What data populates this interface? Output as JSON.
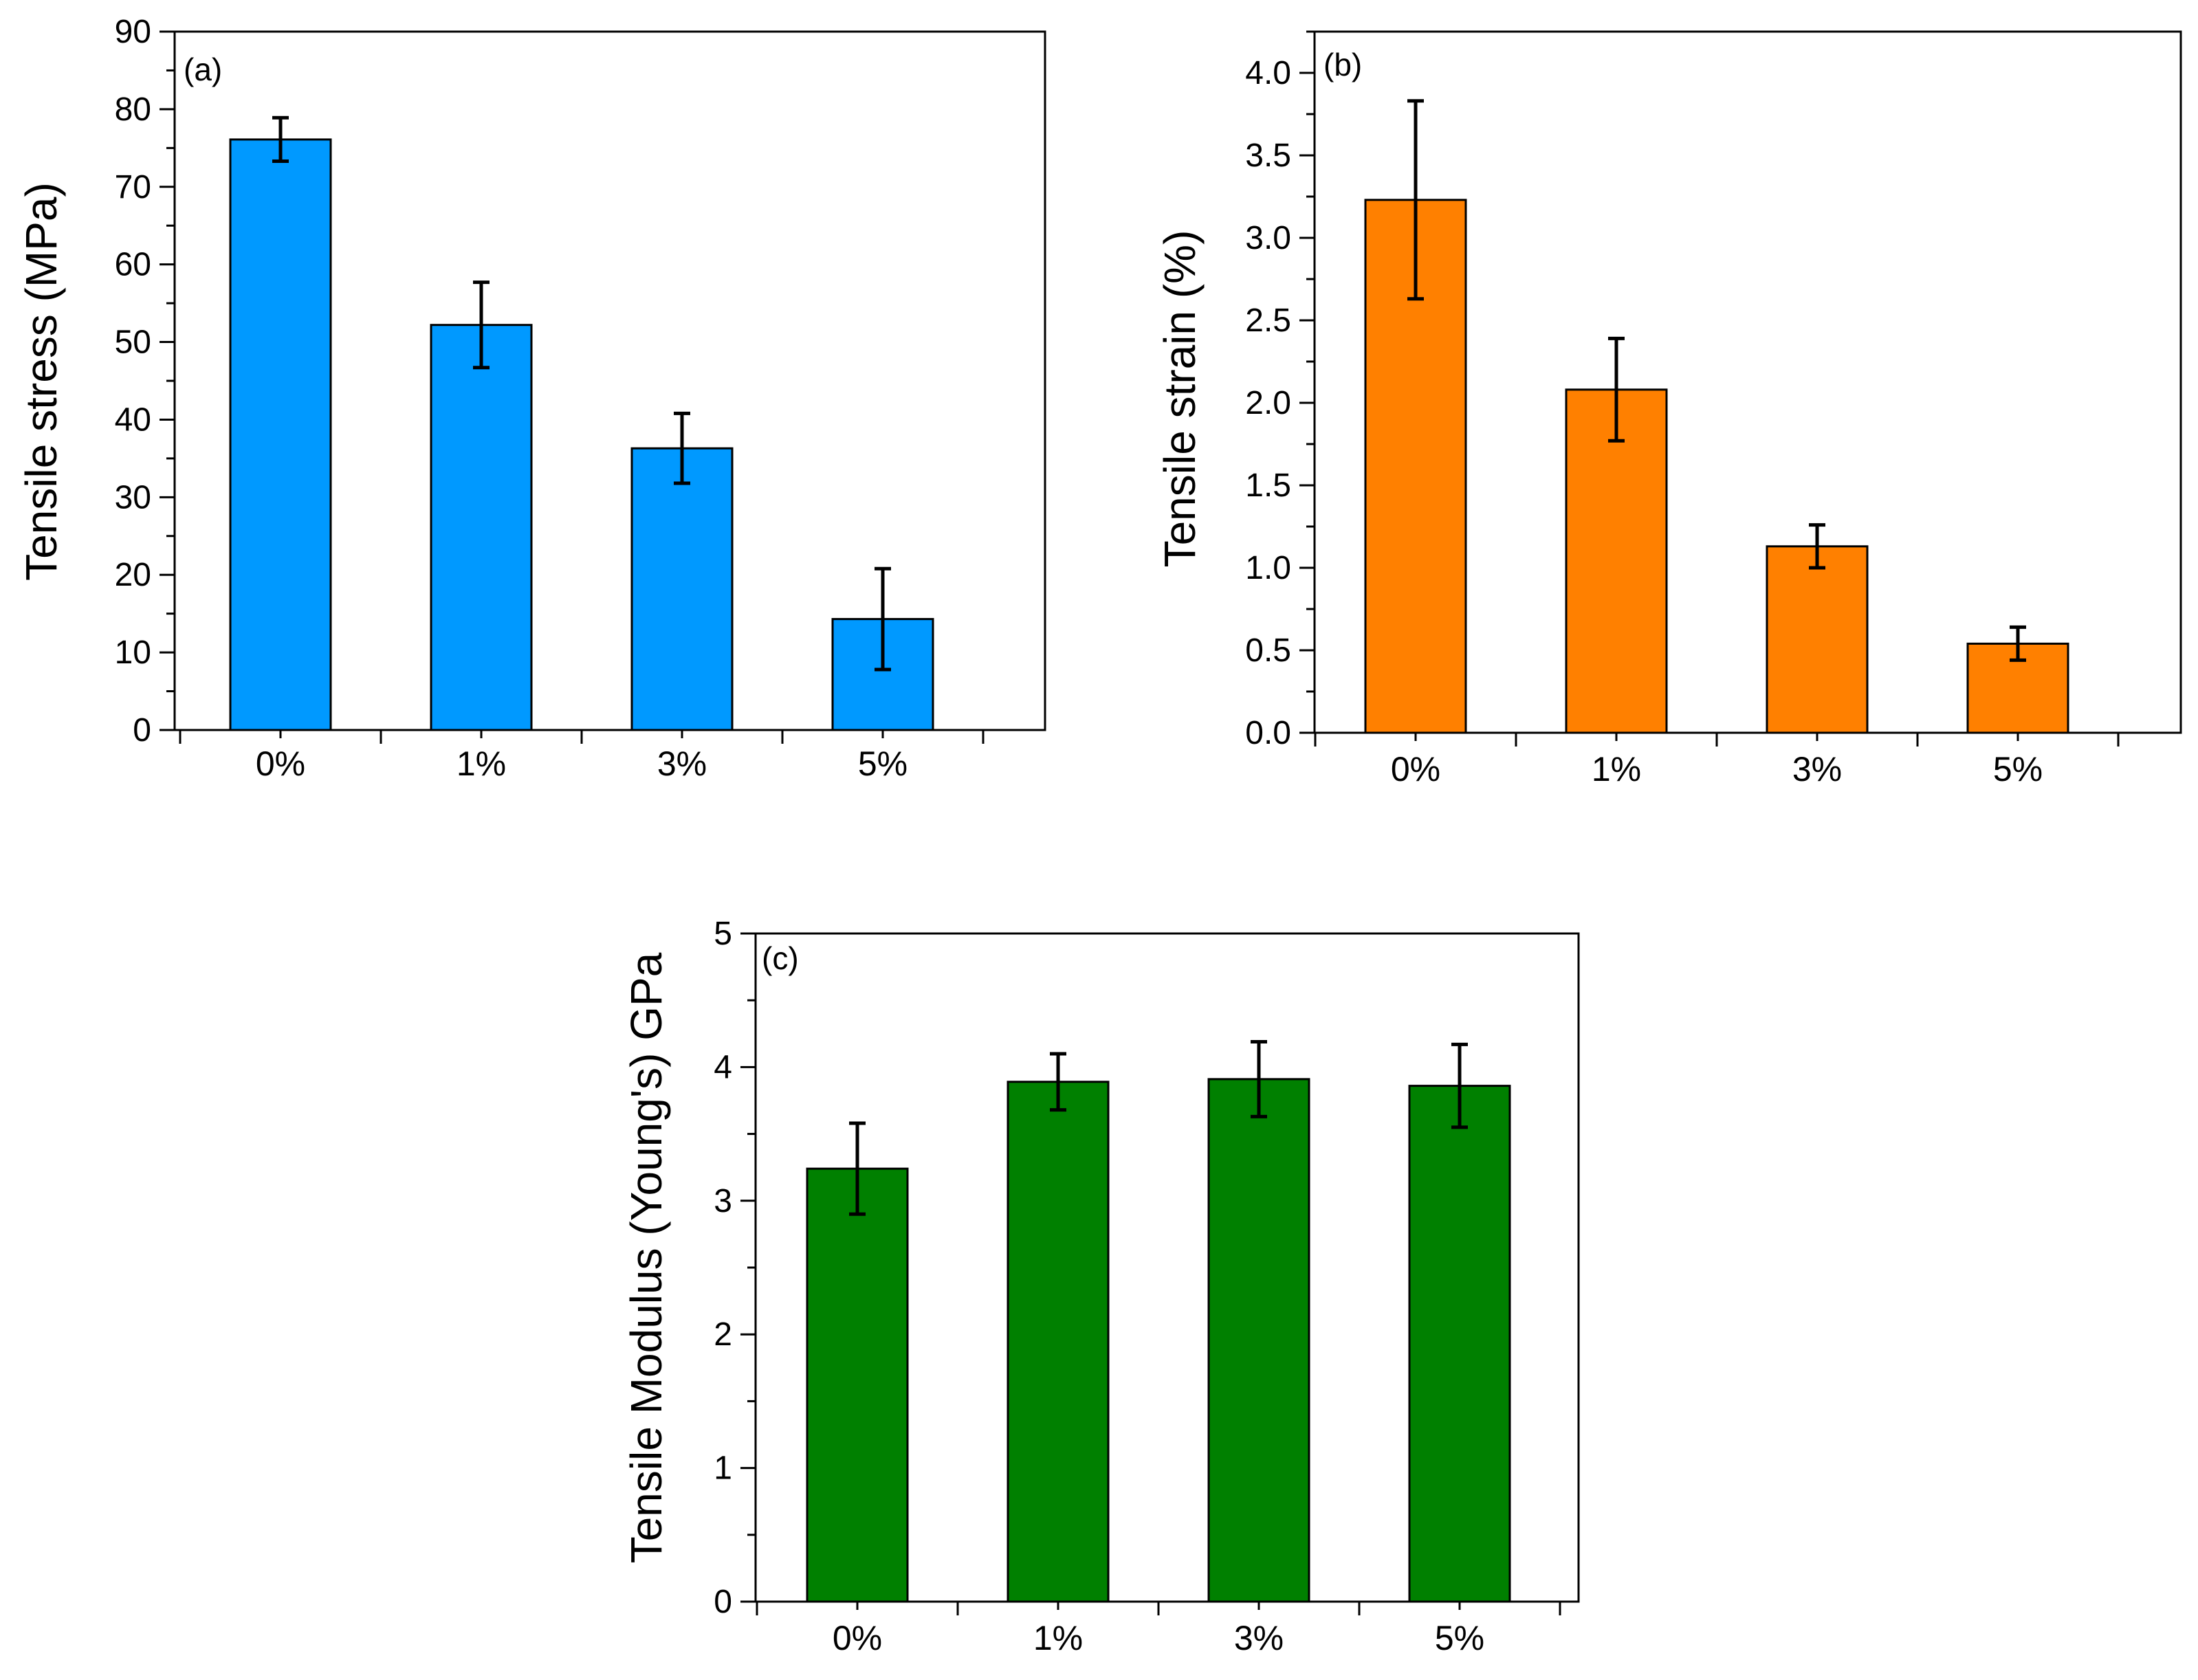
{
  "chart_data": [
    {
      "type": "bar",
      "panel_label": "(a)",
      "categories": [
        "0%",
        "1%",
        "3%",
        "5%"
      ],
      "values": [
        76.1,
        52.2,
        36.3,
        14.3
      ],
      "errors": [
        2.8,
        5.5,
        4.5,
        6.5
      ],
      "ylabel": "Tensile stress (MPa)",
      "ylim": [
        0,
        90
      ],
      "yticks": [
        "0",
        "10",
        "20",
        "30",
        "40",
        "50",
        "60",
        "70",
        "80",
        "90"
      ],
      "bar_color": "#0099ff",
      "grid": false,
      "legend": "none"
    },
    {
      "type": "bar",
      "panel_label": "(b)",
      "categories": [
        "0%",
        "1%",
        "3%",
        "5%"
      ],
      "values": [
        3.23,
        2.08,
        1.13,
        0.54
      ],
      "errors": [
        0.6,
        0.31,
        0.13,
        0.1
      ],
      "ylabel": "Tensile strain (%)",
      "ylim": [
        0,
        4.25
      ],
      "yticks": [
        "0.0",
        "0.5",
        "1.0",
        "1.5",
        "2.0",
        "2.5",
        "3.0",
        "3.5",
        "4.0"
      ],
      "bar_color": "#ff8000",
      "grid": false,
      "legend": "none"
    },
    {
      "type": "bar",
      "panel_label": "(c)",
      "categories": [
        "0%",
        "1%",
        "3%",
        "5%"
      ],
      "values": [
        3.24,
        3.89,
        3.91,
        3.86
      ],
      "errors": [
        0.34,
        0.21,
        0.28,
        0.31
      ],
      "ylabel": "Tensile Modulus (Young's) GPa",
      "ylim": [
        0,
        5
      ],
      "yticks": [
        "0",
        "1",
        "2",
        "3",
        "4",
        "5"
      ],
      "bar_color": "#008000",
      "grid": false,
      "legend": "none"
    }
  ]
}
